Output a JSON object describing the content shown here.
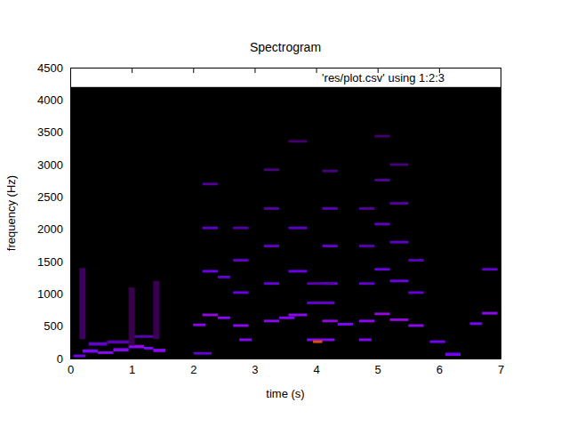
{
  "chart_data": {
    "type": "heatmap",
    "title": "Spectrogram",
    "x_label": "time (s)",
    "y_label": "frequency (Hz)",
    "xlim": [
      0,
      7
    ],
    "ylim": [
      0,
      4500
    ],
    "xticks": [
      0,
      1,
      2,
      3,
      4,
      5,
      6,
      7
    ],
    "yticks": [
      0,
      500,
      1000,
      1500,
      2000,
      2500,
      3000,
      3500,
      4000,
      4500
    ],
    "legend": "top right",
    "color_range": [
      0,
      1
    ],
    "series": [
      {
        "name": "'res/plot.csv' using 1:2:3",
        "cells": [
          [
            0,
            7,
            0,
            4200,
            0
          ],
          [
            0.05,
            0.25,
            20,
            60,
            0.2
          ],
          [
            0.2,
            0.45,
            90,
            140,
            0.25
          ],
          [
            0.45,
            0.7,
            70,
            110,
            0.3
          ],
          [
            0.7,
            0.95,
            110,
            160,
            0.28
          ],
          [
            0.95,
            1.2,
            160,
            210,
            0.3
          ],
          [
            1.2,
            1.35,
            140,
            180,
            0.25
          ],
          [
            1.35,
            1.55,
            100,
            150,
            0.3
          ],
          [
            0.3,
            0.6,
            200,
            250,
            0.15
          ],
          [
            0.6,
            1.0,
            230,
            280,
            0.12
          ],
          [
            1.0,
            1.4,
            320,
            360,
            0.12
          ],
          [
            0.15,
            0.25,
            300,
            1400,
            0.06
          ],
          [
            0.95,
            1.05,
            200,
            1100,
            0.05
          ],
          [
            1.35,
            1.45,
            300,
            1200,
            0.05
          ],
          [
            2.0,
            2.2,
            500,
            540,
            0.3
          ],
          [
            2.15,
            2.4,
            655,
            695,
            0.33
          ],
          [
            2.4,
            2.6,
            610,
            650,
            0.3
          ],
          [
            2.65,
            2.9,
            490,
            530,
            0.3
          ],
          [
            2.75,
            2.95,
            270,
            310,
            0.28
          ],
          [
            3.15,
            3.4,
            560,
            600,
            0.3
          ],
          [
            3.4,
            3.65,
            610,
            650,
            0.28
          ],
          [
            3.55,
            3.85,
            655,
            695,
            0.3
          ],
          [
            3.85,
            4.3,
            270,
            310,
            0.28
          ],
          [
            3.95,
            4.1,
            240,
            280,
            0.7
          ],
          [
            4.1,
            4.35,
            560,
            600,
            0.33
          ],
          [
            4.35,
            4.6,
            510,
            550,
            0.25
          ],
          [
            4.7,
            4.95,
            560,
            600,
            0.3
          ],
          [
            4.7,
            4.9,
            270,
            310,
            0.27
          ],
          [
            4.95,
            5.2,
            670,
            710,
            0.33
          ],
          [
            5.2,
            5.5,
            580,
            620,
            0.33
          ],
          [
            5.5,
            5.75,
            490,
            530,
            0.3
          ],
          [
            5.85,
            6.1,
            240,
            280,
            0.2
          ],
          [
            6.1,
            6.35,
            40,
            90,
            0.2
          ],
          [
            6.5,
            6.7,
            520,
            560,
            0.22
          ],
          [
            6.7,
            6.95,
            680,
            720,
            0.3
          ],
          [
            2.0,
            2.3,
            60,
            100,
            0.15
          ],
          [
            2.15,
            2.4,
            1330,
            1370,
            0.18
          ],
          [
            2.4,
            2.6,
            1240,
            1280,
            0.15
          ],
          [
            2.65,
            2.9,
            1000,
            1040,
            0.17
          ],
          [
            3.15,
            3.4,
            1140,
            1180,
            0.16
          ],
          [
            3.55,
            3.85,
            1330,
            1370,
            0.18
          ],
          [
            4.1,
            4.35,
            1140,
            1180,
            0.18
          ],
          [
            4.95,
            5.2,
            1360,
            1400,
            0.17
          ],
          [
            5.2,
            5.5,
            1180,
            1220,
            0.18
          ],
          [
            5.5,
            5.75,
            1000,
            1040,
            0.16
          ],
          [
            6.7,
            6.95,
            1360,
            1400,
            0.15
          ],
          [
            2.15,
            2.4,
            2000,
            2040,
            0.14
          ],
          [
            2.65,
            2.9,
            1500,
            1540,
            0.14
          ],
          [
            3.15,
            3.4,
            1720,
            1760,
            0.14
          ],
          [
            3.55,
            3.85,
            2000,
            2040,
            0.14
          ],
          [
            4.1,
            4.35,
            1720,
            1760,
            0.15
          ],
          [
            4.95,
            5.2,
            2060,
            2100,
            0.14
          ],
          [
            5.2,
            5.5,
            1780,
            1820,
            0.14
          ],
          [
            5.5,
            5.75,
            1500,
            1540,
            0.13
          ],
          [
            3.85,
            4.3,
            840,
            880,
            0.15
          ],
          [
            4.7,
            4.95,
            1140,
            1180,
            0.15
          ],
          [
            2.15,
            2.4,
            2680,
            2720,
            0.1
          ],
          [
            2.65,
            2.9,
            2000,
            2040,
            0.11
          ],
          [
            3.15,
            3.4,
            2300,
            2340,
            0.11
          ],
          [
            4.1,
            4.35,
            2300,
            2340,
            0.12
          ],
          [
            4.95,
            5.2,
            2740,
            2780,
            0.1
          ],
          [
            5.2,
            5.5,
            2380,
            2420,
            0.11
          ],
          [
            4.7,
            4.95,
            1720,
            1760,
            0.12
          ],
          [
            3.85,
            4.3,
            1140,
            1180,
            0.12
          ],
          [
            3.15,
            3.4,
            2900,
            2940,
            0.08
          ],
          [
            4.1,
            4.35,
            2880,
            2920,
            0.08
          ],
          [
            5.2,
            5.5,
            2980,
            3020,
            0.08
          ],
          [
            4.7,
            4.95,
            2300,
            2340,
            0.1
          ],
          [
            3.55,
            3.85,
            3340,
            3380,
            0.07
          ],
          [
            4.95,
            5.2,
            3420,
            3460,
            0.07
          ]
        ]
      }
    ]
  }
}
